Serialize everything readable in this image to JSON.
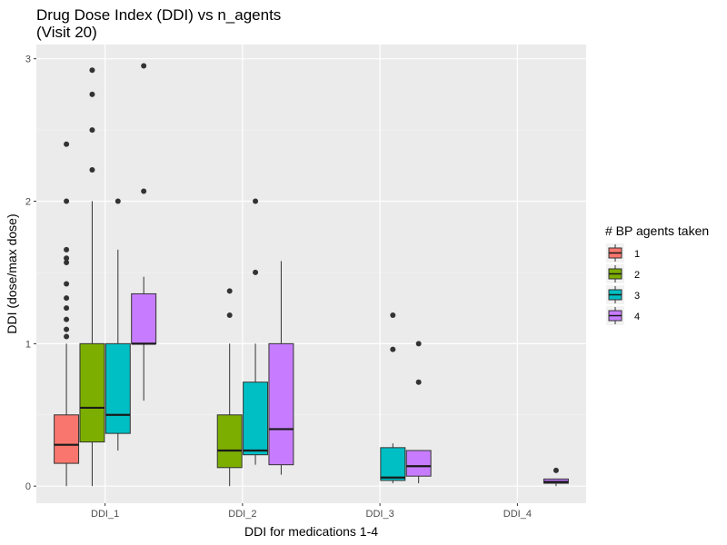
{
  "chart_data": {
    "type": "boxplot",
    "title": [
      "Drug Dose Index (DDI) vs n_agents",
      "(Visit 20)"
    ],
    "xlabel": "DDI for medications 1-4",
    "ylabel": "DDI (dose/max dose)",
    "categories": [
      "DDI_1",
      "DDI_2",
      "DDI_3",
      "DDI_4"
    ],
    "ylim": [
      -0.12,
      3.1
    ],
    "yticks": [
      0,
      1,
      2,
      3
    ],
    "grid": true,
    "legend": {
      "title": "# BP agents taken",
      "placement": "right",
      "entries": [
        "1",
        "2",
        "3",
        "4"
      ]
    },
    "series": [
      {
        "name": "1",
        "color": "#F8766D",
        "boxes": [
          {
            "category": "DDI_1",
            "min": 0.0,
            "q1": 0.16,
            "median": 0.29,
            "q3": 0.5,
            "max": 1.0,
            "outliers": [
              1.05,
              1.1,
              1.17,
              1.25,
              1.32,
              1.42,
              1.57,
              1.6,
              1.66,
              2.0,
              2.4
            ]
          }
        ]
      },
      {
        "name": "2",
        "color": "#7CAE00",
        "boxes": [
          {
            "category": "DDI_1",
            "min": 0.0,
            "q1": 0.31,
            "median": 0.55,
            "q3": 1.0,
            "max": 2.0,
            "outliers": [
              2.22,
              2.5,
              2.75,
              2.92
            ]
          },
          {
            "category": "DDI_2",
            "min": 0.0,
            "q1": 0.13,
            "median": 0.25,
            "q3": 0.5,
            "max": 1.0,
            "outliers": [
              1.2,
              1.37
            ]
          }
        ]
      },
      {
        "name": "3",
        "color": "#00BFC4",
        "boxes": [
          {
            "category": "DDI_1",
            "min": 0.25,
            "q1": 0.37,
            "median": 0.5,
            "q3": 1.0,
            "max": 1.66,
            "outliers": [
              2.0
            ]
          },
          {
            "category": "DDI_2",
            "min": 0.15,
            "q1": 0.22,
            "median": 0.25,
            "q3": 0.73,
            "max": 1.0,
            "outliers": [
              1.5,
              2.0
            ]
          },
          {
            "category": "DDI_3",
            "min": 0.02,
            "q1": 0.04,
            "median": 0.06,
            "q3": 0.27,
            "max": 0.3,
            "outliers": [
              0.96,
              1.2
            ]
          }
        ]
      },
      {
        "name": "4",
        "color": "#C77CFF",
        "boxes": [
          {
            "category": "DDI_1",
            "min": 0.6,
            "q1": 1.0,
            "median": 1.0,
            "q3": 1.35,
            "max": 1.47,
            "outliers": [
              2.07,
              2.95
            ]
          },
          {
            "category": "DDI_2",
            "min": 0.08,
            "q1": 0.15,
            "median": 0.4,
            "q3": 1.0,
            "max": 1.58,
            "outliers": []
          },
          {
            "category": "DDI_3",
            "min": 0.02,
            "q1": 0.07,
            "median": 0.14,
            "q3": 0.25,
            "max": 0.25,
            "outliers": [
              0.73,
              1.0
            ]
          },
          {
            "category": "DDI_4",
            "min": 0.0,
            "q1": 0.02,
            "median": 0.03,
            "q3": 0.05,
            "max": 0.05,
            "outliers": [
              0.11
            ]
          }
        ]
      }
    ]
  }
}
